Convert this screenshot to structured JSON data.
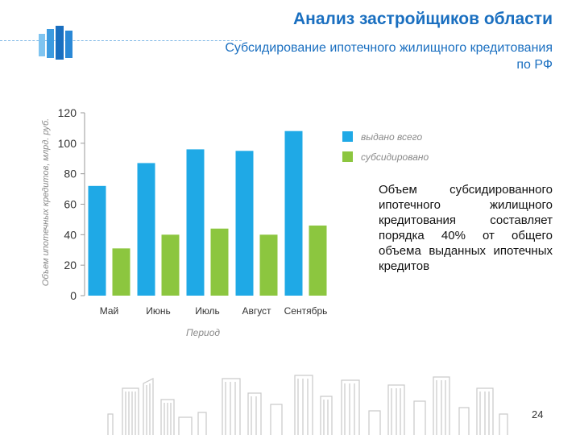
{
  "header": {
    "title": "Анализ застройщиков области",
    "subtitle": "Субсидирование ипотечного жилищного кредитования по РФ"
  },
  "note": "Объем субсидированного ипотечного жилищного кредитования составляет порядка 40% от общего объема выданных ипотечных кредитов",
  "page_number": "24",
  "colors": {
    "accent": "#1a6fc0",
    "series_total": "#1fa9e6",
    "series_subsidized": "#8cc63f"
  },
  "icons": [
    "building-logo-icon",
    "city-skyline-icon"
  ],
  "chart_data": {
    "type": "bar",
    "categories": [
      "Май",
      "Июнь",
      "Июль",
      "Август",
      "Сентябрь"
    ],
    "series": [
      {
        "name": "выдано всего",
        "values": [
          72,
          87,
          96,
          95,
          108
        ]
      },
      {
        "name": "субсидировано",
        "values": [
          31,
          40,
          44,
          40,
          46
        ]
      }
    ],
    "title": "",
    "xlabel": "Период",
    "ylabel": "Объем ипотечных кредитов, млрд. руб.",
    "ylim": [
      0,
      120
    ],
    "yticks": [
      0,
      20,
      40,
      60,
      80,
      100,
      120
    ],
    "legend_position": "top-right",
    "grid": false
  }
}
